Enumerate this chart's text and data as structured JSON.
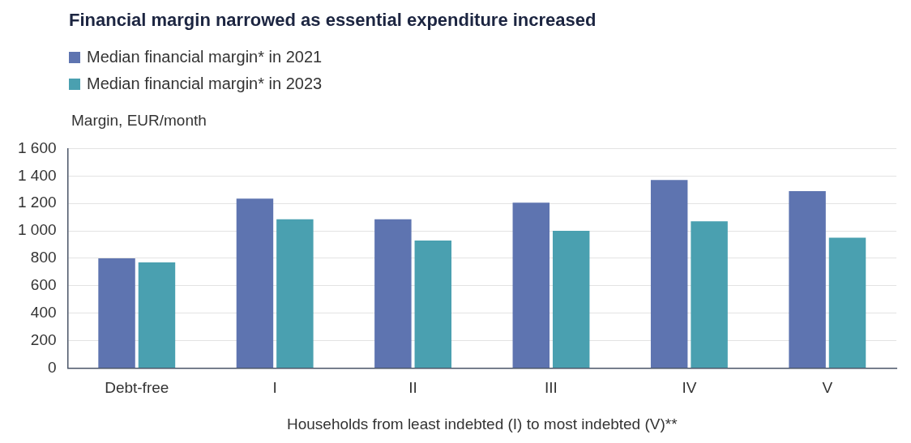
{
  "chart_data": {
    "type": "bar",
    "title": "Financial margin narrowed as essential expenditure increased",
    "ylabel": "Margin, EUR/month",
    "xlabel": "Households from least indebted (I) to most indebted (V)**",
    "categories": [
      "Debt-free",
      "I",
      "II",
      "III",
      "IV",
      "V"
    ],
    "series": [
      {
        "name": "Median financial margin* in 2021",
        "color": "#5e74b0",
        "values": [
          800,
          1235,
          1085,
          1205,
          1370,
          1290
        ]
      },
      {
        "name": "Median financial margin* in 2023",
        "color": "#4aa0b0",
        "values": [
          770,
          1085,
          930,
          1000,
          1070,
          950
        ]
      }
    ],
    "ylim": [
      0,
      1600
    ],
    "yticks": [
      0,
      200,
      400,
      600,
      800,
      {
        "value": 1000,
        "label": "1 000"
      },
      {
        "value": 1200,
        "label": "1 200"
      },
      {
        "value": 1400,
        "label": "1 400"
      },
      {
        "value": 1600,
        "label": "1 600"
      }
    ],
    "grid": "y",
    "legend": "top left"
  }
}
